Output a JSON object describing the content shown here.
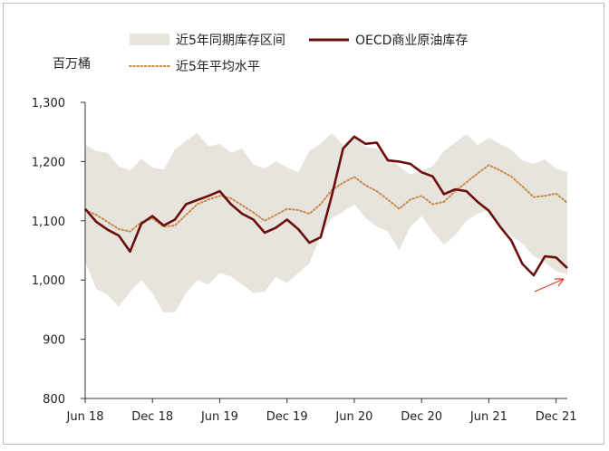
{
  "chart_data": {
    "type": "line",
    "ylabel": "百万桶",
    "ylim": [
      800,
      1300
    ],
    "y_ticks": [
      800,
      900,
      1000,
      1100,
      1200,
      1300
    ],
    "y_tick_labels": [
      "800",
      "900",
      "1,000",
      "1,100",
      "1,200",
      "1,300"
    ],
    "x_tick_labels": [
      "Jun 18",
      "Dec 18",
      "Jun 19",
      "Dec 19",
      "Jun 20",
      "Dec 20",
      "Jun 21",
      "Dec 21"
    ],
    "x_tick_positions": [
      0,
      6,
      12,
      18,
      24,
      30,
      36,
      42
    ],
    "x": [
      "Jun 18",
      "Jul 18",
      "Aug 18",
      "Sep 18",
      "Oct 18",
      "Nov 18",
      "Dec 18",
      "Jan 19",
      "Feb 19",
      "Mar 19",
      "Apr 19",
      "May 19",
      "Jun 19",
      "Jul 19",
      "Aug 19",
      "Sep 19",
      "Oct 19",
      "Nov 19",
      "Dec 19",
      "Jan 20",
      "Feb 20",
      "Mar 20",
      "Apr 20",
      "May 20",
      "Jun 20",
      "Jul 20",
      "Aug 20",
      "Sep 20",
      "Oct 20",
      "Nov 20",
      "Dec 20",
      "Jan 21",
      "Feb 21",
      "Mar 21",
      "Apr 21",
      "May 21",
      "Jun 21",
      "Jul 21",
      "Aug 21",
      "Sep 21",
      "Oct 21",
      "Nov 21",
      "Dec 21",
      "Jan 22"
    ],
    "legend": {
      "range": "近5年同期库存区间",
      "oecd": "OECD商业原油库存",
      "avg": "近5年平均水平"
    },
    "series": [
      {
        "name": "近5年同期库存区间",
        "kind": "band",
        "color": "#e6e4dd",
        "upper": [
          1228,
          1218,
          1215,
          1192,
          1185,
          1205,
          1190,
          1186,
          1220,
          1235,
          1248,
          1226,
          1230,
          1215,
          1222,
          1195,
          1188,
          1200,
          1190,
          1182,
          1218,
          1230,
          1248,
          1228,
          1245,
          1225,
          1222,
          1208,
          1192,
          1178,
          1185,
          1192,
          1218,
          1232,
          1246,
          1228,
          1240,
          1230,
          1220,
          1202,
          1196,
          1204,
          1188,
          1182
        ],
        "lower": [
          1030,
          985,
          975,
          955,
          980,
          1000,
          978,
          945,
          946,
          978,
          1000,
          992,
          1012,
          1006,
          992,
          978,
          980,
          1005,
          995,
          1012,
          1028,
          1075,
          1105,
          1115,
          1128,
          1105,
          1090,
          1082,
          1050,
          1090,
          1108,
          1082,
          1060,
          1075,
          1100,
          1112,
          1118,
          1090,
          1075,
          1062,
          1040,
          1030,
          1015,
          1010
        ]
      },
      {
        "name": "OECD商业原油库存",
        "kind": "line",
        "color": "#6b0d0d",
        "values": [
          1120,
          1098,
          1085,
          1075,
          1048,
          1095,
          1108,
          1092,
          1102,
          1128,
          1135,
          1142,
          1150,
          1128,
          1112,
          1102,
          1080,
          1088,
          1102,
          1086,
          1063,
          1072,
          1143,
          1222,
          1242,
          1230,
          1232,
          1202,
          1200,
          1196,
          1182,
          1175,
          1145,
          1153,
          1150,
          1132,
          1117,
          1090,
          1067,
          1027,
          1008,
          1040,
          1038,
          1020
        ]
      },
      {
        "name": "近5年平均水平",
        "kind": "line",
        "style": "dotted",
        "color": "#c98a4a",
        "values": [
          1118,
          1110,
          1098,
          1086,
          1082,
          1098,
          1104,
          1090,
          1092,
          1110,
          1128,
          1136,
          1142,
          1138,
          1126,
          1114,
          1100,
          1110,
          1120,
          1118,
          1112,
          1128,
          1152,
          1164,
          1174,
          1160,
          1150,
          1136,
          1120,
          1136,
          1142,
          1128,
          1132,
          1150,
          1165,
          1180,
          1194,
          1185,
          1175,
          1158,
          1140,
          1142,
          1146,
          1130
        ]
      }
    ],
    "annotations": [
      {
        "type": "arrow",
        "color": "#e53935",
        "points_at": "Dec 21"
      }
    ]
  }
}
